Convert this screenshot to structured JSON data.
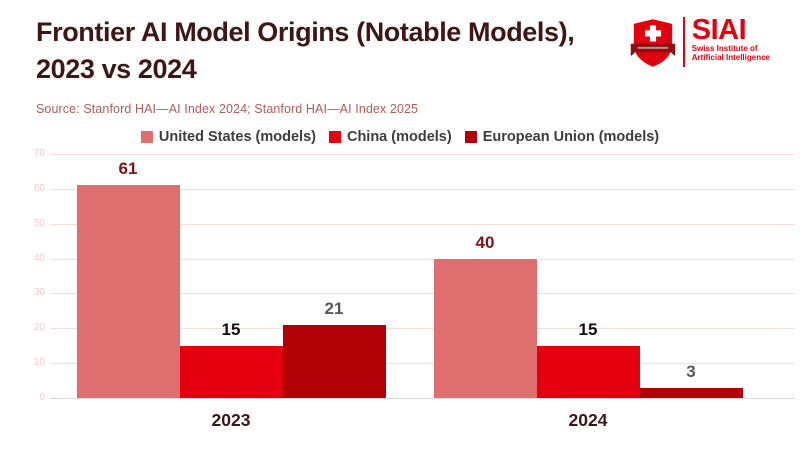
{
  "header": {
    "title_lines": [
      "Frontier AI Model Origins (Notable Models),",
      "2023 vs 2024"
    ],
    "logo": {
      "acronym": "SIAI",
      "subtitle_lines": [
        "Swiss Institute of",
        "Artificial Intelligence"
      ]
    }
  },
  "source": "Source: Stanford HAI—AI Index 2024; Stanford HAI—AI Index 2025",
  "colors": {
    "title": "#3f1616",
    "source_text": "#ad5c5c",
    "logo_red": "#e4000f",
    "logo_banner": "#8a1014",
    "tick_label": "#f5c8c8",
    "gridline": "#f8dcdc",
    "axis_line": "#d9d9d9",
    "legend_text": "#3d3d3d"
  },
  "chart_data": {
    "type": "bar",
    "categories": [
      "2023",
      "2024"
    ],
    "series": [
      {
        "name": "United States (models)",
        "values": [
          61,
          40
        ],
        "color": "#df6e6e",
        "label_color": "#7d1416"
      },
      {
        "name": "China (models)",
        "values": [
          15,
          15
        ],
        "color": "#e4000f",
        "label_color": "#111111"
      },
      {
        "name": "European Union (models)",
        "values": [
          21,
          3
        ],
        "color": "#b20007",
        "label_color": "#595959"
      }
    ],
    "ylim": [
      0,
      70
    ],
    "ytick_step": 10,
    "grid": true,
    "legend_position": "top",
    "value_labels": true
  }
}
